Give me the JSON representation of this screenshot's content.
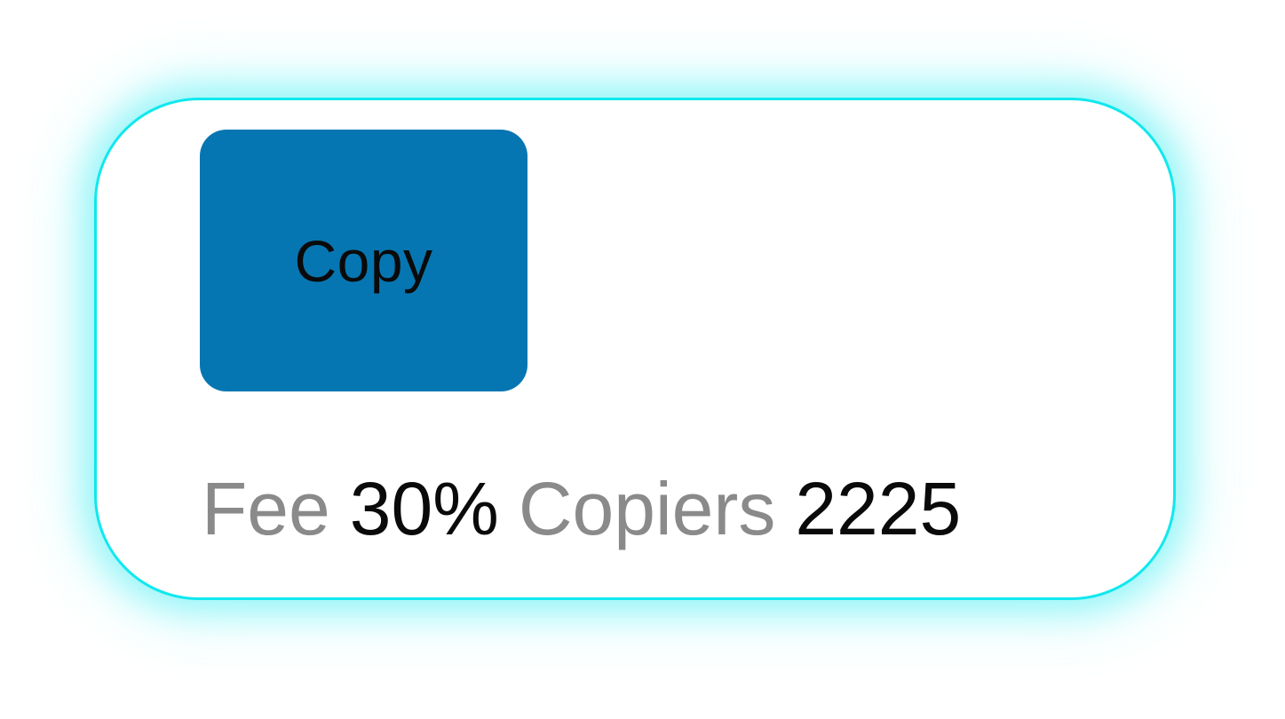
{
  "card": {
    "copy_button": {
      "label": "Copy"
    },
    "stats": {
      "fee_label": "Fee",
      "fee_value": "30%",
      "copiers_label": "Copiers",
      "copiers_value": "2225"
    }
  },
  "colors": {
    "button_bg": "#0676b2",
    "card_border_glow": "#10e8ee",
    "label_gray": "#8a8a8a",
    "value_black": "#0a0a0a"
  }
}
